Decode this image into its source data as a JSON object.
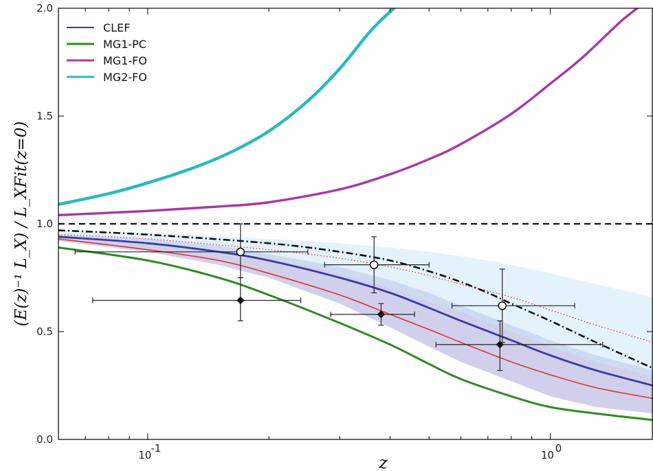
{
  "chart_data": {
    "type": "line",
    "xscale": "log",
    "xlim": [
      0.06,
      1.8
    ],
    "ylim": [
      0.0,
      2.0
    ],
    "xlabel": "z",
    "ylabel": "(E(z)⁻¹ L_X) / L_XFit(z=0)",
    "x_ticks": [
      {
        "value": 0.1,
        "label": "10",
        "exp": "-1"
      },
      {
        "value": 1.0,
        "label": "10",
        "exp": "0"
      }
    ],
    "y_ticks": [
      {
        "value": 0.0,
        "label": "0.0"
      },
      {
        "value": 0.5,
        "label": "0.5"
      },
      {
        "value": 1.0,
        "label": "1.0"
      },
      {
        "value": 1.5,
        "label": "1.5"
      },
      {
        "value": 2.0,
        "label": "2.0"
      }
    ],
    "grid": false,
    "legend_position": "top-left",
    "legend": [
      {
        "name": "CLEF",
        "color": "#3b3b9e"
      },
      {
        "name": "MG1-PC",
        "color": "#2e8b22"
      },
      {
        "name": "MG1-FO",
        "color": "#a83aa8"
      },
      {
        "name": "MG2-FO",
        "color": "#2ab8c0"
      }
    ],
    "series": [
      {
        "name": "MG2-FO",
        "color": "#2ab8c0",
        "width": 4.5,
        "style": "solid",
        "x": [
          0.06,
          0.08,
          0.1,
          0.13,
          0.16,
          0.2,
          0.25,
          0.3,
          0.36,
          0.42
        ],
        "y": [
          1.09,
          1.14,
          1.19,
          1.26,
          1.33,
          1.43,
          1.57,
          1.72,
          1.9,
          2.02
        ]
      },
      {
        "name": "MG1-FO",
        "color": "#a83aa8",
        "width": 3.5,
        "style": "solid",
        "x": [
          0.06,
          0.1,
          0.15,
          0.2,
          0.3,
          0.4,
          0.5,
          0.6,
          0.8,
          1.0,
          1.2,
          1.5,
          1.7
        ],
        "y": [
          1.04,
          1.06,
          1.08,
          1.1,
          1.16,
          1.23,
          1.3,
          1.37,
          1.51,
          1.65,
          1.77,
          1.94,
          2.02
        ]
      },
      {
        "name": "CLEF",
        "color": "#3b3b9e",
        "width": 2.8,
        "style": "solid",
        "x": [
          0.06,
          0.1,
          0.15,
          0.2,
          0.3,
          0.4,
          0.5,
          0.6,
          0.8,
          1.0,
          1.3,
          1.8
        ],
        "y": [
          0.94,
          0.91,
          0.87,
          0.83,
          0.75,
          0.68,
          0.61,
          0.55,
          0.46,
          0.39,
          0.32,
          0.25
        ]
      },
      {
        "name": "MG1-PC",
        "color": "#2e8b22",
        "width": 3,
        "style": "solid",
        "x": [
          0.06,
          0.1,
          0.15,
          0.2,
          0.3,
          0.4,
          0.5,
          0.6,
          0.8,
          1.0,
          1.3,
          1.8
        ],
        "y": [
          0.89,
          0.83,
          0.75,
          0.67,
          0.54,
          0.44,
          0.35,
          0.28,
          0.2,
          0.15,
          0.12,
          0.09
        ]
      },
      {
        "name": "",
        "color": "#e03030",
        "width": 1.6,
        "style": "solid",
        "x": [
          0.06,
          0.1,
          0.15,
          0.2,
          0.3,
          0.4,
          0.5,
          0.6,
          0.8,
          1.0,
          1.3,
          1.8
        ],
        "y": [
          0.93,
          0.88,
          0.83,
          0.77,
          0.67,
          0.58,
          0.51,
          0.45,
          0.36,
          0.3,
          0.24,
          0.19
        ]
      },
      {
        "name": "",
        "color": "#e03030",
        "width": 1.2,
        "style": "dotted",
        "x": [
          0.06,
          0.1,
          0.2,
          0.3,
          0.4,
          0.5,
          0.6,
          0.8,
          1.0,
          1.3,
          1.8
        ],
        "y": [
          0.95,
          0.93,
          0.88,
          0.84,
          0.8,
          0.76,
          0.72,
          0.66,
          0.6,
          0.53,
          0.45
        ]
      },
      {
        "name": "",
        "color": "#111111",
        "width": 2.6,
        "style": "dashdot",
        "x": [
          0.06,
          0.1,
          0.2,
          0.3,
          0.4,
          0.5,
          0.6,
          0.7,
          0.8,
          1.0,
          1.3,
          1.8
        ],
        "y": [
          0.97,
          0.95,
          0.91,
          0.87,
          0.83,
          0.78,
          0.73,
          0.68,
          0.63,
          0.55,
          0.45,
          0.33
        ]
      },
      {
        "name": "",
        "color": "#111111",
        "width": 2.2,
        "style": "dashed",
        "x": [
          0.06,
          1.8
        ],
        "y": [
          1.0,
          1.0
        ]
      }
    ],
    "bands": [
      {
        "color": "#7a78c8",
        "opacity": 0.35,
        "x": [
          0.06,
          0.1,
          0.15,
          0.2,
          0.3,
          0.4,
          0.5,
          0.6,
          0.8,
          1.0,
          1.3,
          1.8
        ],
        "upper": [
          0.95,
          0.93,
          0.9,
          0.86,
          0.8,
          0.74,
          0.68,
          0.62,
          0.53,
          0.46,
          0.39,
          0.32
        ],
        "lower": [
          0.92,
          0.87,
          0.81,
          0.75,
          0.63,
          0.52,
          0.43,
          0.36,
          0.27,
          0.2,
          0.15,
          0.12
        ]
      },
      {
        "color": "#c9e6f7",
        "opacity": 0.5,
        "x": [
          0.06,
          0.1,
          0.2,
          0.3,
          0.4,
          0.5,
          0.6,
          0.8,
          1.0,
          1.3,
          1.8
        ],
        "upper": [
          0.97,
          0.96,
          0.93,
          0.91,
          0.89,
          0.87,
          0.85,
          0.81,
          0.77,
          0.72,
          0.66
        ],
        "lower": [
          0.94,
          0.91,
          0.84,
          0.77,
          0.7,
          0.64,
          0.59,
          0.5,
          0.43,
          0.36,
          0.29
        ]
      }
    ],
    "points_open": [
      {
        "x": 0.17,
        "y": 0.87,
        "xerr": [
          0.066,
          0.25
        ],
        "yerr": [
          0.75,
          1.0
        ]
      },
      {
        "x": 0.365,
        "y": 0.81,
        "xerr": [
          0.275,
          0.5
        ],
        "yerr": [
          0.68,
          0.94
        ]
      },
      {
        "x": 0.76,
        "y": 0.62,
        "xerr": [
          0.57,
          1.15
        ],
        "yerr": [
          0.45,
          0.79
        ]
      }
    ],
    "points_filled": [
      {
        "x": 0.17,
        "y": 0.645,
        "xerr": [
          0.073,
          0.24
        ],
        "yerr": [
          0.55,
          0.75
        ]
      },
      {
        "x": 0.38,
        "y": 0.58,
        "xerr": [
          0.285,
          0.46
        ],
        "yerr": [
          0.53,
          0.63
        ]
      },
      {
        "x": 0.75,
        "y": 0.44,
        "xerr": [
          0.52,
          1.35
        ],
        "yerr": [
          0.32,
          0.55
        ]
      }
    ]
  }
}
